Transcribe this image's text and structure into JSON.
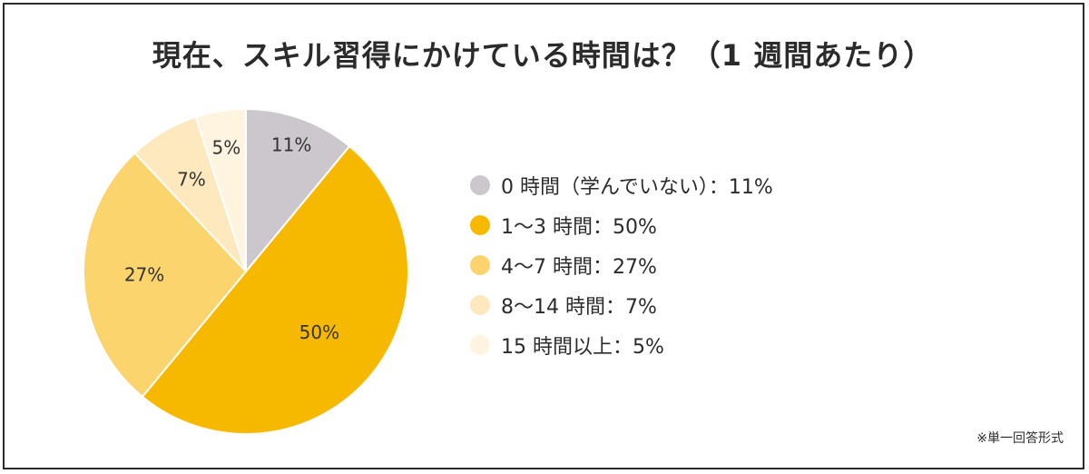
{
  "chart_data": {
    "type": "pie",
    "title": "現在、スキル習得にかけている時間は？（1 週間あたり）",
    "categories": [
      "0 時間（学んでいない）",
      "1〜3 時間",
      "4〜7 時間",
      "8〜14 時間",
      "15 時間以上"
    ],
    "values": [
      11,
      50,
      27,
      7,
      5
    ],
    "value_labels": [
      "11%",
      "50%",
      "27%",
      "7%",
      "5%"
    ],
    "legend_labels": [
      "0 時間（学んでいない）：11%",
      "1〜3 時間：50%",
      "4〜7 時間：27%",
      "8〜14 時間：7%",
      "15 時間以上：5%"
    ],
    "colors": [
      "#cbc7cc",
      "#f7b900",
      "#fbd46e",
      "#fde9bd",
      "#fff4e0"
    ],
    "legend_position": "right",
    "start_angle_deg": 0,
    "direction": "clockwise"
  },
  "note": "※単一回答形式"
}
